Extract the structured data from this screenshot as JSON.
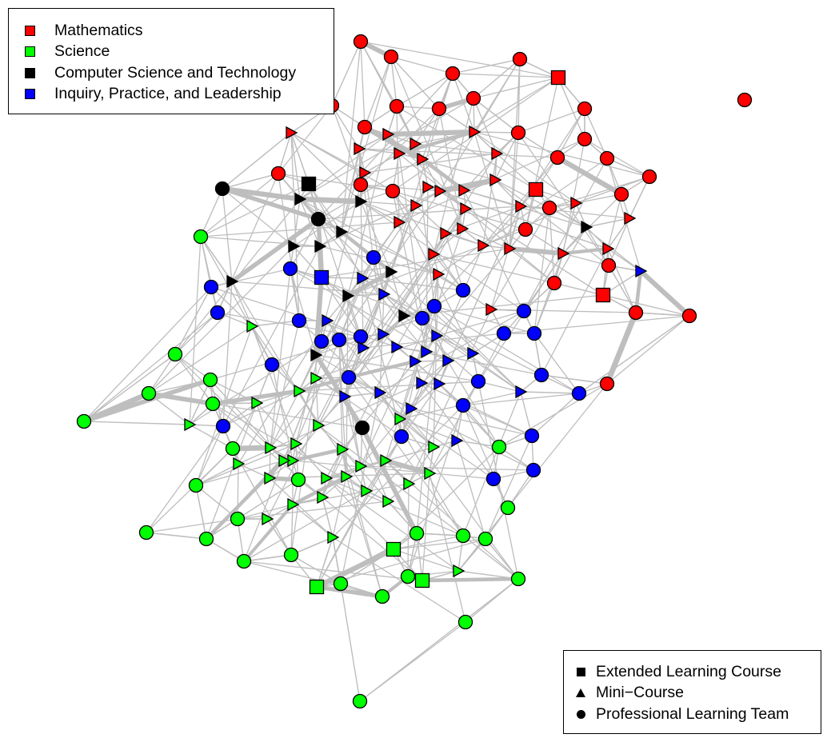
{
  "legend_topics": {
    "items": [
      {
        "label": "Mathematics",
        "color": "#ff0000"
      },
      {
        "label": "Science",
        "color": "#00ff00"
      },
      {
        "label": "Computer Science and Technology",
        "color": "#000000"
      },
      {
        "label": "Inquiry, Practice, and Leadership",
        "color": "#0000ff"
      }
    ]
  },
  "legend_formats": {
    "items": [
      {
        "label": "Extended Learning Course",
        "shape": "square"
      },
      {
        "label": "Mini−Course",
        "shape": "triangle"
      },
      {
        "label": "Professional Learning Team",
        "shape": "circle"
      }
    ]
  },
  "colors": {
    "edge": "#bebebe",
    "Mathematics": "#ff0000",
    "Science": "#00ff00",
    "Computer Science and Technology": "#000000",
    "Inquiry, Practice, and Leadership": "#0000ff"
  }
}
